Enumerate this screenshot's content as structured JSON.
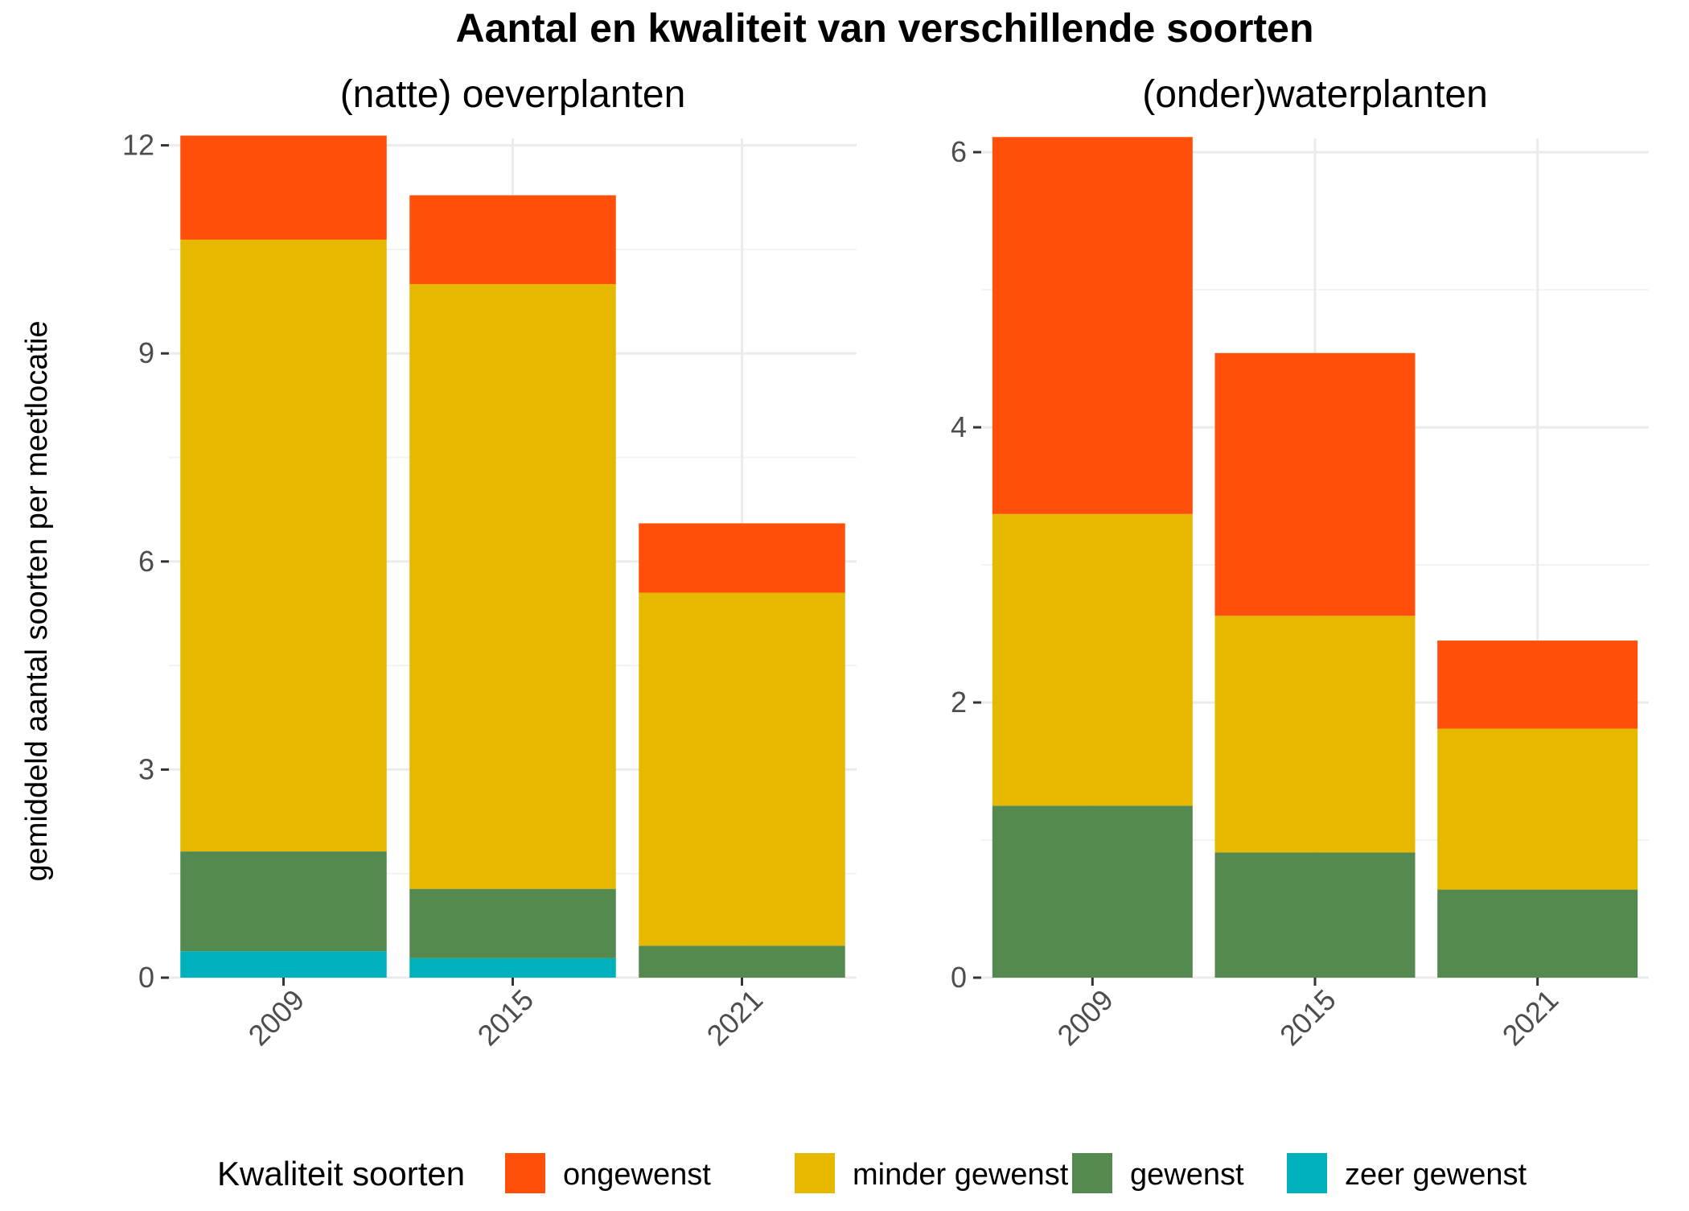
{
  "title": "Aantal en kwaliteit van verschillende soorten",
  "ylabel": "gemiddeld aantal soorten per meetlocatie",
  "legend": {
    "title": "Kwaliteit soorten",
    "items": [
      {
        "label": "ongewenst",
        "color": "#FF4F0A"
      },
      {
        "label": "minder gewenst",
        "color": "#E6B800"
      },
      {
        "label": "gewenst",
        "color": "#548A4F"
      },
      {
        "label": "zeer gewenst",
        "color": "#00B0BD"
      }
    ]
  },
  "chart_data": [
    {
      "type": "bar",
      "stacked": true,
      "title": "(natte) oeverplanten",
      "categories": [
        "2009",
        "2015",
        "2021"
      ],
      "ylim": [
        0,
        12.1
      ],
      "yticks": [
        0,
        3,
        6,
        9,
        12
      ],
      "series": [
        {
          "name": "zeer gewenst",
          "color": "#00B0BD",
          "values": [
            0.38,
            0.28,
            0
          ]
        },
        {
          "name": "gewenst",
          "color": "#548A4F",
          "values": [
            1.44,
            1.0,
            0.46
          ]
        },
        {
          "name": "minder gewenst",
          "color": "#E6B800",
          "values": [
            8.82,
            8.72,
            5.09
          ]
        },
        {
          "name": "ongewenst",
          "color": "#FF4F0A",
          "values": [
            1.5,
            1.28,
            1.0
          ]
        }
      ]
    },
    {
      "type": "bar",
      "stacked": true,
      "title": "(onder)waterplanten",
      "categories": [
        "2009",
        "2015",
        "2021"
      ],
      "ylim": [
        0,
        6.1
      ],
      "yticks": [
        0,
        2,
        4,
        6
      ],
      "series": [
        {
          "name": "zeer gewenst",
          "color": "#00B0BD",
          "values": [
            0,
            0,
            0
          ]
        },
        {
          "name": "gewenst",
          "color": "#548A4F",
          "values": [
            1.25,
            0.91,
            0.64
          ]
        },
        {
          "name": "minder gewenst",
          "color": "#E6B800",
          "values": [
            2.12,
            1.72,
            1.17
          ]
        },
        {
          "name": "ongewenst",
          "color": "#FF4F0A",
          "values": [
            2.74,
            1.91,
            0.64
          ]
        }
      ]
    }
  ]
}
